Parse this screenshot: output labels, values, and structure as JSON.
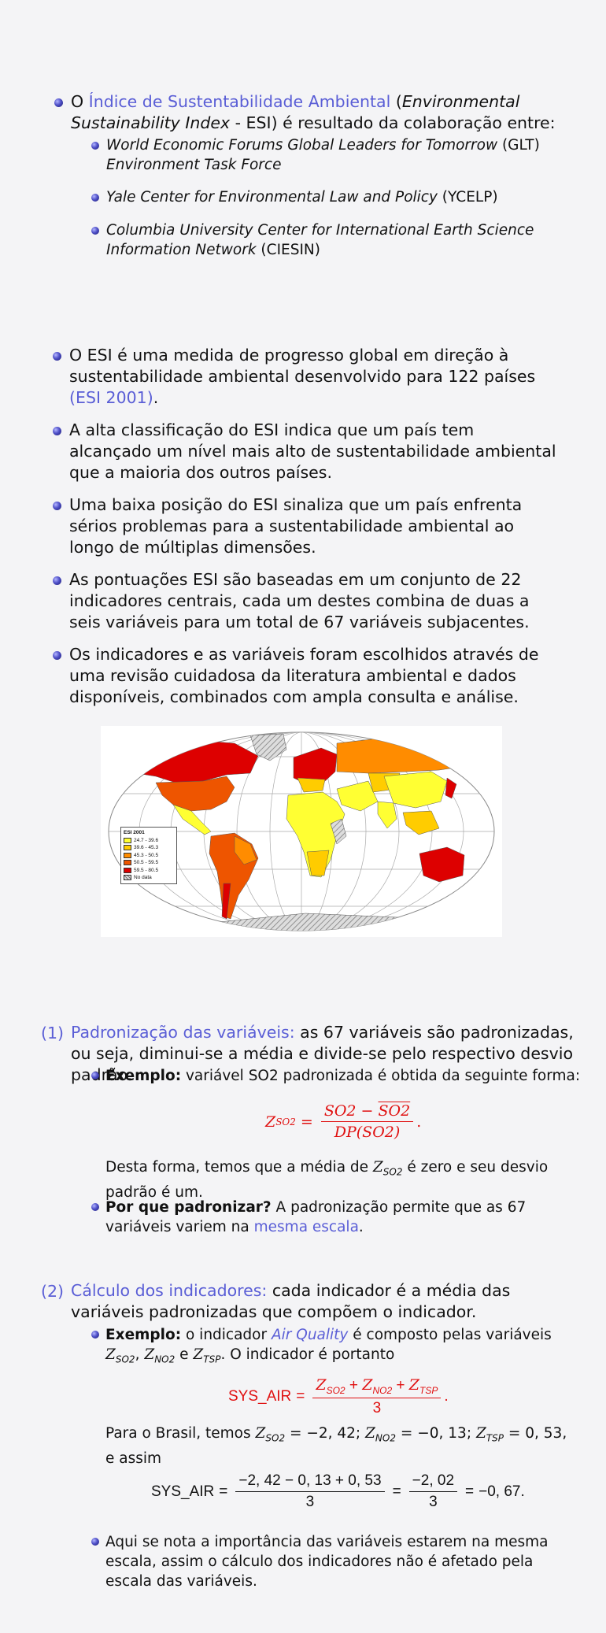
{
  "slide1": {
    "intro": {
      "prefix": "O ",
      "link": "Índice de Sustentabilidade Ambiental",
      "mid": " (",
      "italic": "Environmental Sustainability Index",
      "suffix": " - ESI) é resultado da colaboração entre:"
    },
    "sub_items": [
      {
        "italic": "World Economic Forums Global Leaders for Tomorrow",
        "plain": " (GLT) ",
        "italic2": "Environment Task Force"
      },
      {
        "italic": "Yale Center for Environmental Law and Policy",
        "plain": " (YCELP)",
        "italic2": ""
      },
      {
        "italic": "Columbia University Center for International Earth Science Information Network",
        "plain": " (CIESIN)",
        "italic2": ""
      }
    ]
  },
  "slide2": {
    "items": [
      {
        "text": "O ESI é uma medida de progresso global em direção à sustentabilidade ambiental desenvolvido para 122 países ",
        "link": "(ESI 2001)",
        "end": "."
      },
      {
        "text": "A alta classificação do ESI indica que um país tem alcançado um nível mais alto de sustentabilidade ambiental que a maioria dos outros países.",
        "link": "",
        "end": ""
      },
      {
        "text": "Uma baixa posição do ESI sinaliza que um país enfrenta sérios problemas para a sustentabilidade ambiental ao longo de múltiplas dimensões.",
        "link": "",
        "end": ""
      },
      {
        "text": "As pontuações ESI são baseadas em um conjunto de 22 indicadores centrais, cada um destes combina de duas a seis variáveis para um total de 67 variáveis subjacentes.",
        "link": "",
        "end": ""
      },
      {
        "text": "Os indicadores e as variáveis foram escolhidos através de uma revisão cuidadosa da literatura ambiental e dados disponíveis, combinados com ampla consulta e análise.",
        "link": "",
        "end": ""
      }
    ],
    "map": {
      "legend_title": "ESI 2001",
      "legend": [
        {
          "label": "24.7 - 39.6",
          "color": "#ffff33"
        },
        {
          "label": "39.6 - 45.3",
          "color": "#ffcc00"
        },
        {
          "label": "45.3 - 50.5",
          "color": "#ff8c00"
        },
        {
          "label": "50.5 - 59.5",
          "color": "#ee5500"
        },
        {
          "label": "59.5 - 80.5",
          "color": "#dd0000"
        },
        {
          "label": "No data",
          "color": "hatch"
        }
      ]
    }
  },
  "slide3": {
    "step1": {
      "num": "(1)",
      "title": "Padronização das variáveis:",
      "text": " as 67 variáveis são padronizadas, ou seja, diminui-se a média e divide-se pelo respectivo desvio padrão.",
      "ex_label": "Exemplo:",
      "ex_text": " variável SO2 padronizada é obtida da seguinte forma:",
      "formula": {
        "lhs": "Z",
        "lhs_sub": "SO2",
        "num_a": "SO2",
        "num_minus": " − ",
        "num_b": "SO2",
        "den": "DP(SO2)",
        "end": "."
      },
      "after_a": "Desta forma, temos que a média de ",
      "after_z": "Z",
      "after_sub": "SO2",
      "after_b": " é zero e seu desvio padrão é um.",
      "why_label": "Por que padronizar?",
      "why_text": " A padronização permite que as 67 variáveis variem na ",
      "why_link": "mesma escala",
      "why_end": "."
    },
    "step2": {
      "num": "(2)",
      "title": "Cálculo dos indicadores:",
      "text": " cada indicador é a média das variáveis padronizadas que compõem o indicador.",
      "ex_label": "Exemplo:",
      "ex_a": " o indicador ",
      "ex_link": "Air Quality",
      "ex_b": " é composto pelas variáveis ",
      "ex_c": ". O indicador é portanto",
      "formula_lhs": "SYS_AIR",
      "formula_den": "3",
      "brasil_text": "Para o Brasil, temos",
      "brasil_vals": {
        "so2": "−2, 42",
        "no2": "−0, 13",
        "tsp": "0, 53"
      },
      "brasil_end": "e assim",
      "calc": {
        "lhs": "SYS_AIR",
        "num1": "−2, 42 − 0, 13 + 0, 53",
        "den1": "3",
        "num2": "−2, 02",
        "den2": "3",
        "result": "−0, 67."
      },
      "note": "Aqui se nota a importância das variáveis estarem na mesma escala, assim o cálculo dos indicadores não é afetado pela escala das variáveis."
    }
  }
}
